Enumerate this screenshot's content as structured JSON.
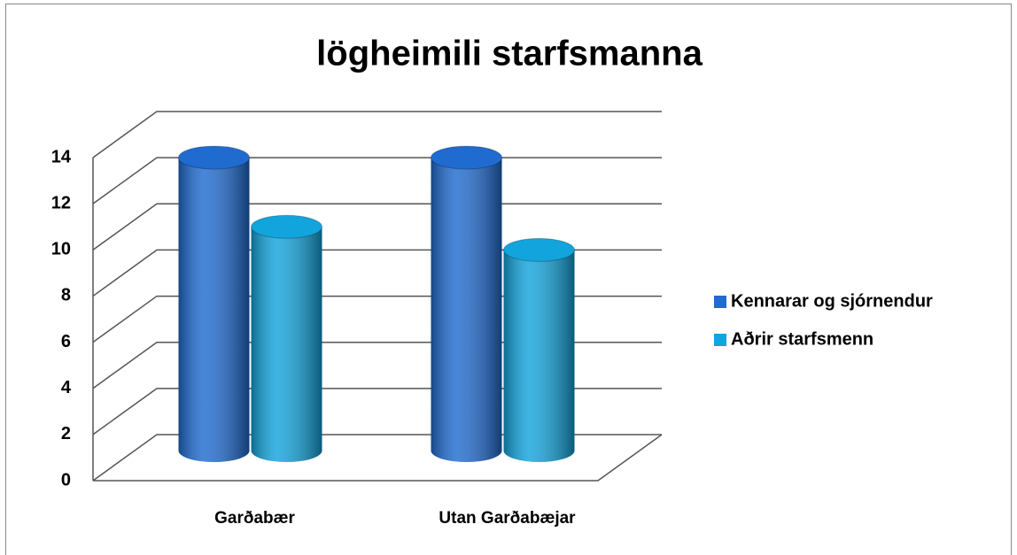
{
  "chart_data": {
    "type": "bar3d",
    "title": "lögheimili starfsmanna",
    "categories": [
      "Garðabær",
      "Utan Garðabæjar"
    ],
    "series": [
      {
        "name": "Kennarar og sjórnendur",
        "color": "#1f6bd0",
        "values": [
          13,
          13
        ]
      },
      {
        "name": "Aðrir starfsmenn",
        "color": "#12a4dc",
        "values": [
          10,
          9
        ]
      }
    ],
    "ylim": [
      0,
      14
    ],
    "yticks": [
      0,
      2,
      4,
      6,
      8,
      10,
      12,
      14
    ],
    "grid": true,
    "legend": "right"
  }
}
